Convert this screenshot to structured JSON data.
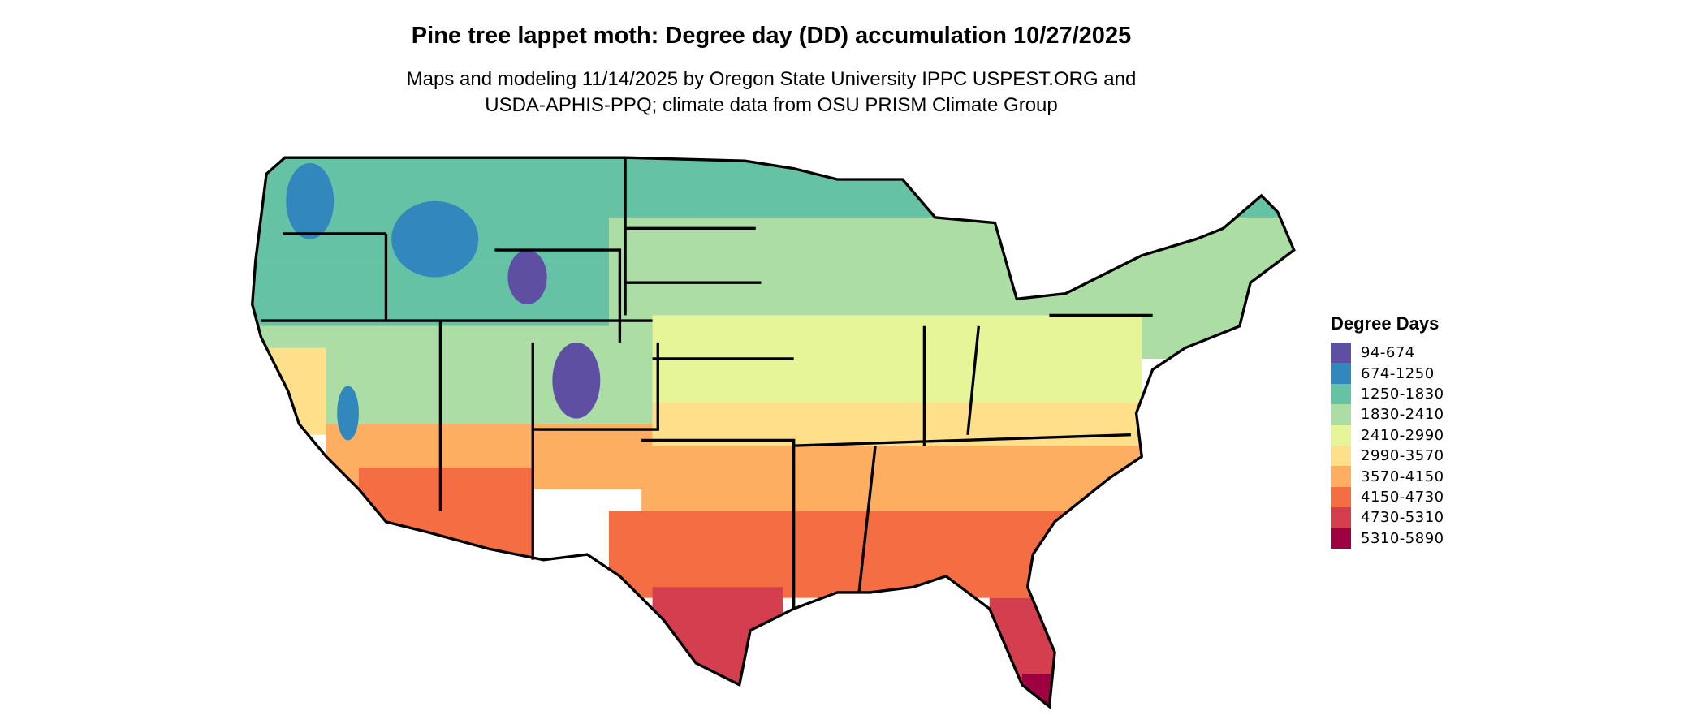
{
  "title": "Pine tree lappet moth: Degree day (DD) accumulation 10/27/2025",
  "subtitle_lines": [
    "Maps and modeling 11/14/2025 by Oregon State University IPPC USPEST.ORG and",
    "USDA-APHIS-PPQ; climate data from OSU PRISM Climate Group"
  ],
  "legend": {
    "title": "Degree Days",
    "items": [
      {
        "label": "94-674",
        "color": "#5e4fa2"
      },
      {
        "label": "674-1250",
        "color": "#3288bd"
      },
      {
        "label": "1250-1830",
        "color": "#66c2a5"
      },
      {
        "label": "1830-2410",
        "color": "#abdda4"
      },
      {
        "label": "2410-2990",
        "color": "#e6f598"
      },
      {
        "label": "2990-3570",
        "color": "#fee08b"
      },
      {
        "label": "3570-4150",
        "color": "#fdae61"
      },
      {
        "label": "4150-4730",
        "color": "#f46d43"
      },
      {
        "label": "4730-5310",
        "color": "#d53e4f"
      },
      {
        "label": "5310-5890",
        "color": "#9e0142"
      }
    ]
  }
}
